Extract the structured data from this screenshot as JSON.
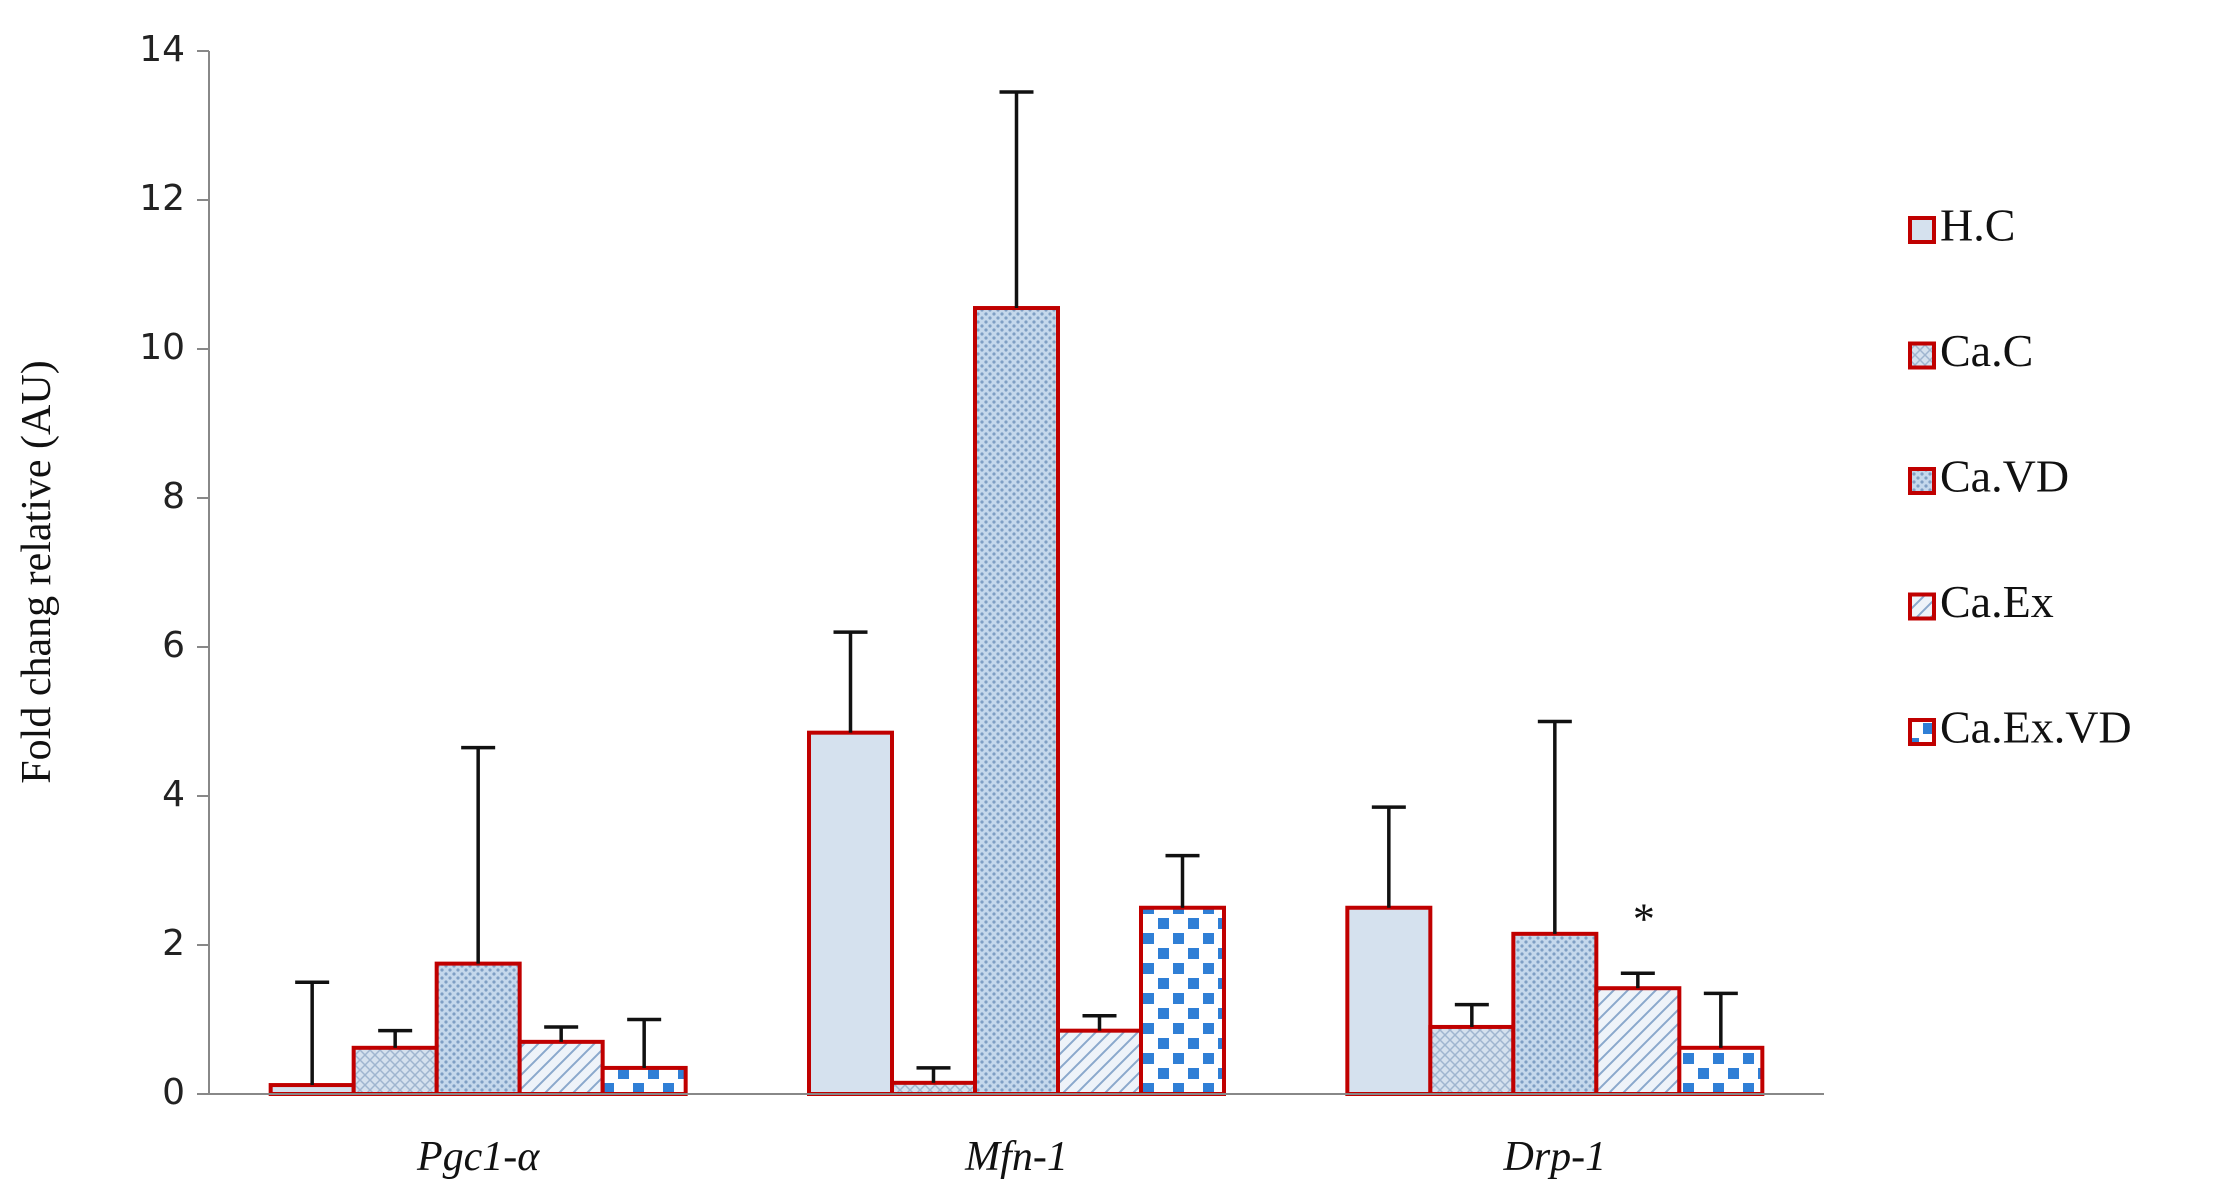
{
  "chart_data": {
    "type": "bar",
    "y_label": "Fold chang relative (AU)",
    "categories": [
      "Pgc1-α",
      "Mfn-1",
      "Drp-1"
    ],
    "series": [
      {
        "name": "H.C",
        "color": "#d5e1ee",
        "values": [
          0.12,
          4.85,
          2.5
        ],
        "errors": [
          1.38,
          1.35,
          1.35
        ]
      },
      {
        "name": "Ca.C",
        "color": "#d5e1ee",
        "values": [
          0.62,
          0.15,
          0.9
        ],
        "errors": [
          0.23,
          0.2,
          0.3
        ]
      },
      {
        "name": "Ca.VD",
        "color": "#c5d8ec",
        "values": [
          1.75,
          10.55,
          2.15
        ],
        "errors": [
          2.9,
          2.9,
          2.85
        ]
      },
      {
        "name": "Ca.Ex",
        "color": "#dde7f2",
        "values": [
          0.7,
          0.85,
          1.42
        ],
        "errors": [
          0.2,
          0.2,
          0.2
        ]
      },
      {
        "name": "Ca.Ex.VD",
        "color": "#2f7fd6",
        "values": [
          0.35,
          2.5,
          0.62
        ],
        "errors": [
          0.65,
          0.7,
          0.73
        ]
      }
    ],
    "edgecolor": "#c00000",
    "annotation": "*",
    "ylim": [
      0,
      14
    ],
    "yticks": [
      0,
      2,
      4,
      6,
      8,
      10,
      12,
      14
    ],
    "grid": false,
    "legend": "right"
  }
}
